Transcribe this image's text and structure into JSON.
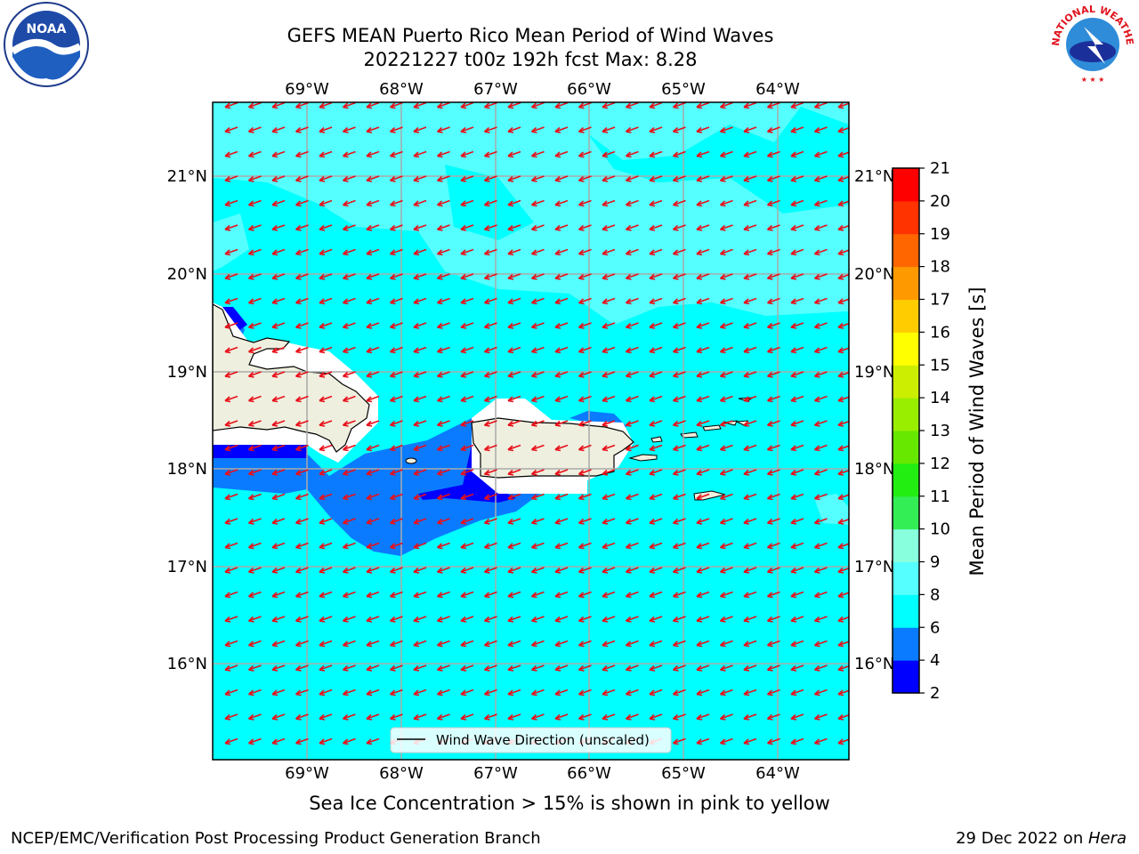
{
  "title": {
    "line1": "GEFS MEAN Puerto Rico Mean Period of Wind Waves",
    "line2": "20221227 t00z 192h fcst   Max: 8.28"
  },
  "map": {
    "lon_labels": [
      "69°W",
      "68°W",
      "67°W",
      "66°W",
      "65°W",
      "64°W"
    ],
    "lat_labels": [
      "21°N",
      "20°N",
      "19°N",
      "18°N",
      "17°N",
      "16°N"
    ],
    "legend_label": "Wind Wave Direction (unscaled)",
    "arrow_color": "#e8101a",
    "ocean_color": "#00ffff"
  },
  "colorbar": {
    "label": "Mean Period of Wind Waves [s]",
    "ticks": [
      "2",
      "4",
      "6",
      "8",
      "9",
      "10",
      "11",
      "12",
      "13",
      "14",
      "15",
      "16",
      "17",
      "18",
      "19",
      "20",
      "21"
    ],
    "colors": [
      "#0000ff",
      "#0a7bff",
      "#00ffff",
      "#55ffff",
      "#88ffdd",
      "#33ee55",
      "#22ee11",
      "#66e800",
      "#99ee00",
      "#ccee00",
      "#ffff00",
      "#ffcc00",
      "#ff9900",
      "#ff6600",
      "#ff3300",
      "#ff0000"
    ]
  },
  "note": "Sea Ice Concentration > 15% is shown in pink to yellow",
  "footer": {
    "left": "NCEP/EMC/Verification Post Processing Product Generation Branch",
    "right_date": "29 Dec 2022 on ",
    "right_host": "Hera"
  },
  "logos": {
    "noaa": "NOAA",
    "nws_text": "NATIONAL WEATHER SERVICE"
  }
}
